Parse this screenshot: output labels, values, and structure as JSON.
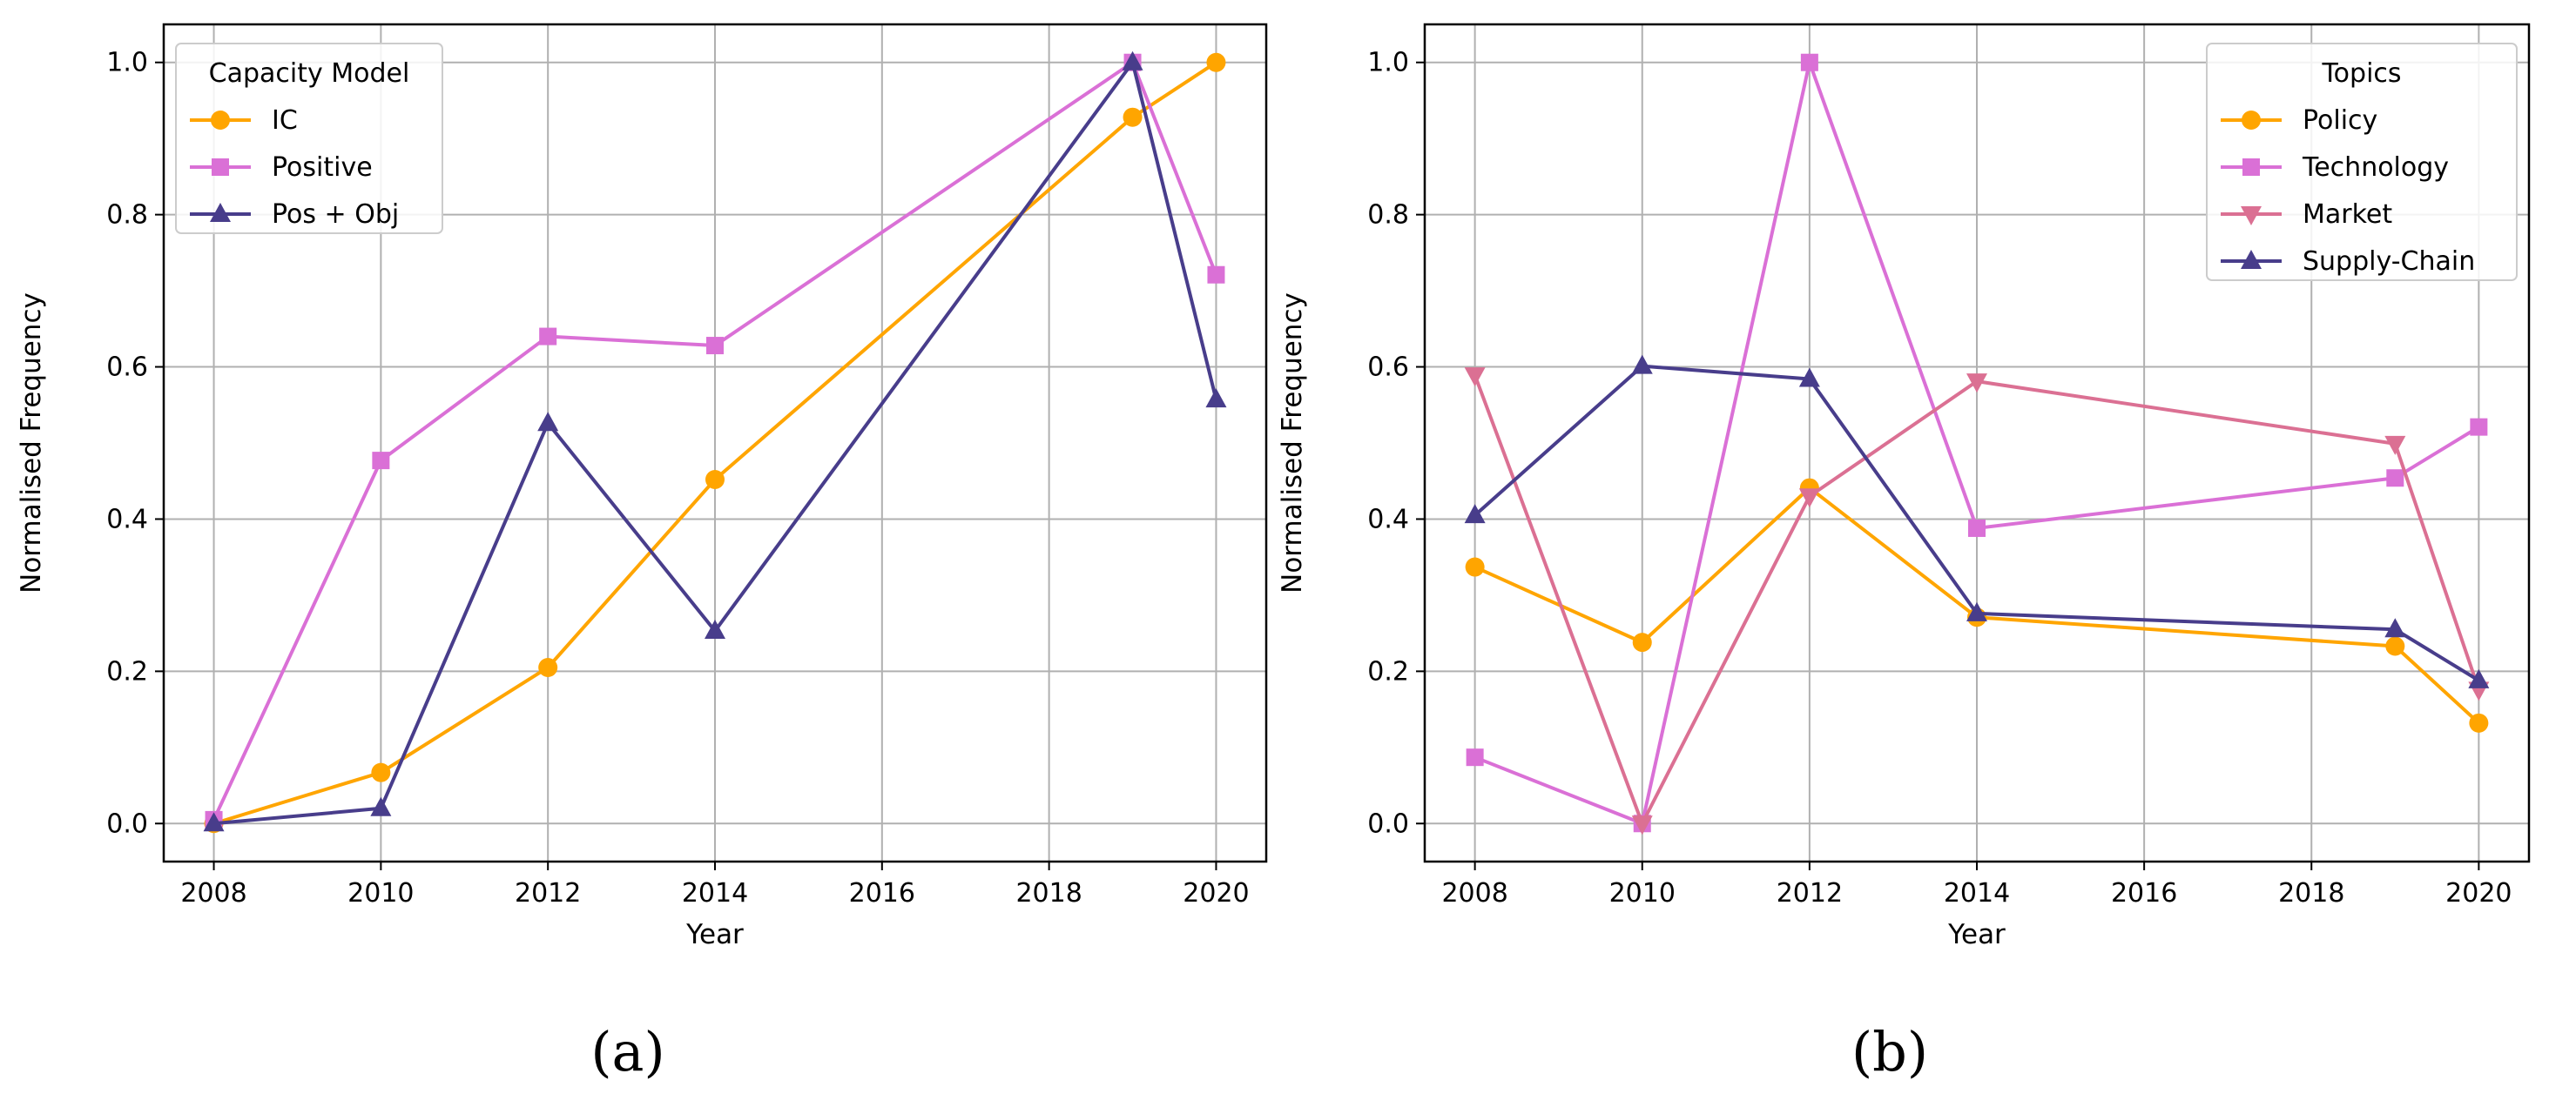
{
  "chart_data": [
    {
      "type": "line",
      "panel_label": "(a)",
      "xlabel": "Year",
      "ylabel": "Normalised Frequency",
      "xlim": [
        2007.4,
        2020.6
      ],
      "ylim": [
        -0.05,
        1.05
      ],
      "xticks": [
        2008,
        2010,
        2012,
        2014,
        2016,
        2018,
        2020
      ],
      "yticks": [
        0.0,
        0.2,
        0.4,
        0.6,
        0.8,
        1.0
      ],
      "grid": true,
      "legend": {
        "title": "Capacity Model",
        "placement": "top-left"
      },
      "x": [
        2008,
        2010,
        2012,
        2014,
        2019,
        2020
      ],
      "series": [
        {
          "name": "IC",
          "marker": "circle",
          "color": "#FFA500",
          "values": [
            0.0,
            0.067,
            0.205,
            0.452,
            0.928,
            1.0
          ]
        },
        {
          "name": "Positive",
          "marker": "square",
          "color": "#DA70D6",
          "values": [
            0.005,
            0.477,
            0.64,
            0.628,
            1.0,
            0.721
          ]
        },
        {
          "name": "Pos + Obj",
          "marker": "triangle-up",
          "color": "#483D8B",
          "values": [
            0.0,
            0.02,
            0.526,
            0.253,
            1.0,
            0.557
          ]
        }
      ]
    },
    {
      "type": "line",
      "panel_label": "(b)",
      "xlabel": "Year",
      "ylabel": "Normalised Frequency",
      "xlim": [
        2007.4,
        2020.6
      ],
      "ylim": [
        -0.05,
        1.05
      ],
      "xticks": [
        2008,
        2010,
        2012,
        2014,
        2016,
        2018,
        2020
      ],
      "yticks": [
        0.0,
        0.2,
        0.4,
        0.6,
        0.8,
        1.0
      ],
      "grid": true,
      "legend": {
        "title": "Topics",
        "placement": "top-right"
      },
      "x": [
        2008,
        2010,
        2012,
        2014,
        2019,
        2020
      ],
      "series": [
        {
          "name": "Policy",
          "marker": "circle",
          "color": "#FFA500",
          "values": [
            0.337,
            0.238,
            0.441,
            0.271,
            0.233,
            0.132
          ]
        },
        {
          "name": "Technology",
          "marker": "square",
          "color": "#DA70D6",
          "values": [
            0.087,
            0.0,
            1.0,
            0.388,
            0.454,
            0.521
          ]
        },
        {
          "name": "Market",
          "marker": "triangle-down",
          "color": "#DB7093",
          "values": [
            0.589,
            0.0,
            0.43,
            0.581,
            0.499,
            0.176
          ]
        },
        {
          "name": "Supply-Chain",
          "marker": "triangle-up",
          "color": "#483D8B",
          "values": [
            0.405,
            0.601,
            0.584,
            0.276,
            0.255,
            0.188
          ]
        }
      ]
    }
  ]
}
